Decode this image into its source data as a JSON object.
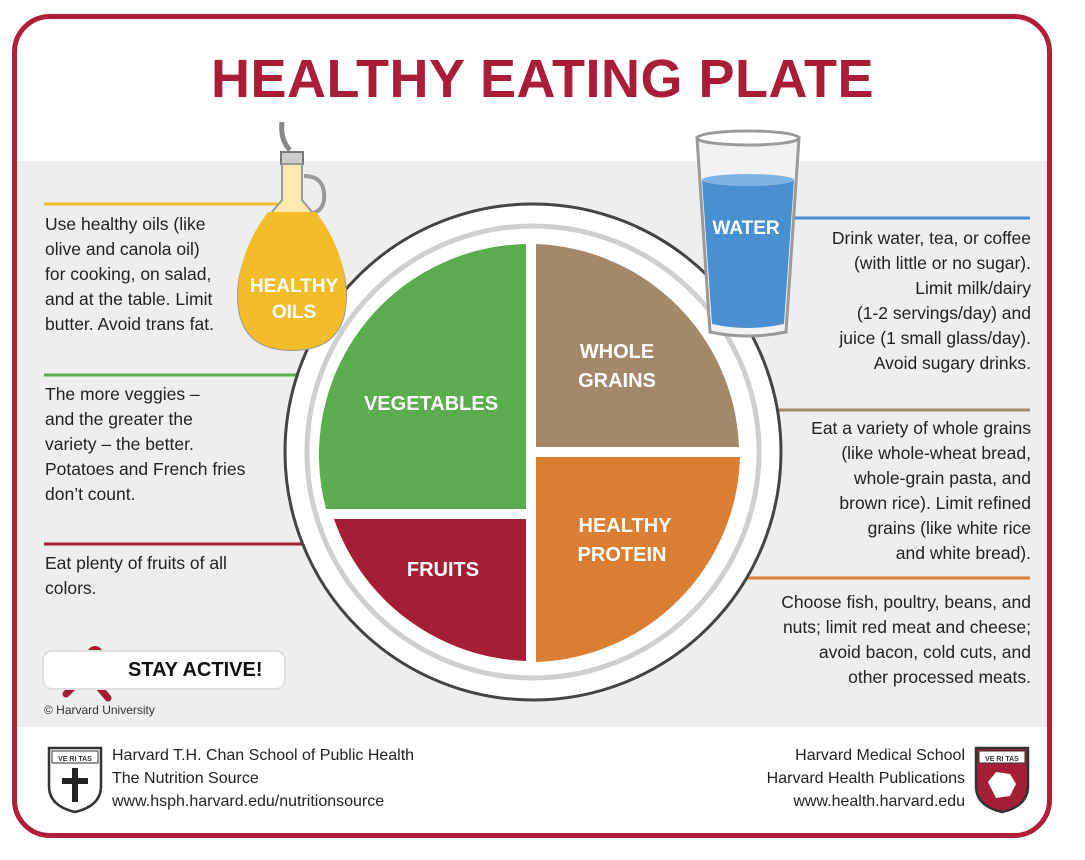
{
  "title": "HEALTHY EATING PLATE",
  "colors": {
    "brand": "#b01e3a",
    "vegetables": "#5aac4e",
    "fruits": "#a41e35",
    "whole_grains": "#a3896a",
    "protein": "#d97e33",
    "oils": "#f3bc2b",
    "water": "#4a8fd0"
  },
  "sections": {
    "oils": {
      "label_line1": "HEALTHY",
      "label_line2": "OILS",
      "text": "Use healthy oils (like\nolive and canola oil)\nfor cooking, on salad,\nand at the table. Limit\nbutter. Avoid trans fat."
    },
    "water": {
      "label": "WATER",
      "text": "Drink water, tea, or coffee\n(with little or no sugar).\nLimit milk/dairy\n(1-2 servings/day) and\njuice (1 small glass/day).\nAvoid sugary drinks."
    },
    "vegetables": {
      "label": "VEGETABLES",
      "text": "The more veggies –\nand the greater the\nvariety – the better.\nPotatoes and French fries\ndon’t count."
    },
    "fruits": {
      "label": "FRUITS",
      "text": "Eat plenty of fruits of all\ncolors."
    },
    "whole_grains": {
      "label_line1": "WHOLE",
      "label_line2": "GRAINS",
      "text": "Eat a variety of whole grains\n(like whole-wheat bread,\nwhole-grain pasta, and\nbrown rice). Limit refined\ngrains (like white rice\nand white bread)."
    },
    "protein": {
      "label_line1": "HEALTHY",
      "label_line2": "PROTEIN",
      "text": "Choose fish, poultry, beans, and\nnuts;  limit red meat and cheese;\navoid bacon, cold cuts,  and\nother processed meats."
    }
  },
  "stay_active": "STAY ACTIVE!",
  "copyright": "© Harvard University",
  "footer": {
    "left_text": "Harvard T.H. Chan School of Public Health\nThe Nutrition Source\nwww.hsph.harvard.edu/nutritionsource",
    "right_text": "Harvard Medical School\nHarvard Health Publications\nwww.health.harvard.edu",
    "left_shield_text": "VE RI TAS",
    "right_shield_text": "VE RI TAS"
  },
  "icons": [
    "oil-bottle-icon",
    "water-glass-icon",
    "runner-icon",
    "harvard-shield-icon"
  ]
}
